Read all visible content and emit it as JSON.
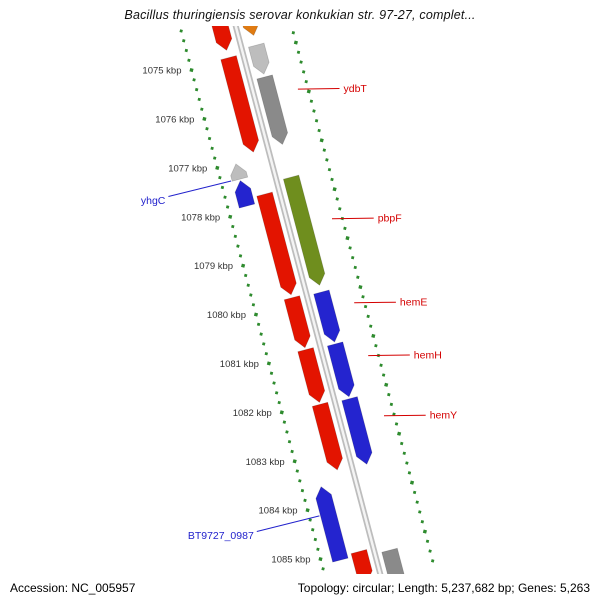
{
  "window": {
    "title": "Bacillus thuringiensis serovar konkukian str. 97-27, complet..."
  },
  "status_bar": {
    "accession": "Accession: NC_005957",
    "summary": "Topology: circular; Length: 5,237,682 bp; Genes: 5,263"
  },
  "chart_data": {
    "type": "genome-feature-map",
    "view": "zoomed linear segment of circular genome, track runs diagonally top-left to bottom-right",
    "axis": {
      "unit": "kbp",
      "visible_range_kbp": [
        1073.9,
        1085.8
      ],
      "minor_tick_interval_kbp": 0.2,
      "major_ticks": [
        {
          "value": 1075,
          "label": "1075 kbp"
        },
        {
          "value": 1076,
          "label": "1076 kbp"
        },
        {
          "value": 1077,
          "label": "1077 kbp"
        },
        {
          "value": 1078,
          "label": "1078 kbp"
        },
        {
          "value": 1079,
          "label": "1079 kbp"
        },
        {
          "value": 1080,
          "label": "1080 kbp"
        },
        {
          "value": 1081,
          "label": "1081 kbp"
        },
        {
          "value": 1082,
          "label": "1082 kbp"
        },
        {
          "value": 1083,
          "label": "1083 kbp"
        },
        {
          "value": 1084,
          "label": "1084 kbp"
        },
        {
          "value": 1085,
          "label": "1085 kbp"
        }
      ]
    },
    "colors": {
      "red": "#e31400",
      "blue": "#2424cf",
      "olive": "#6f8e1e",
      "orange": "#e07b12",
      "gray": "#8a8a8a",
      "gray_light": "#bdbdbd",
      "backbone": "#bdbdbd",
      "backbone_center": "#f4f4f4",
      "tick": "#2e8b2e",
      "label_red": "#d40000",
      "label_blue": "#2222cc"
    },
    "features": [
      {
        "label": null,
        "color_key": "red",
        "lane": "L1",
        "start_kbp": 1074.0,
        "end_kbp": 1074.8,
        "points": "down"
      },
      {
        "label": null,
        "color_key": "orange",
        "lane": "R1",
        "start_kbp": 1074.0,
        "end_kbp": 1074.65,
        "points": "down"
      },
      {
        "label": "ydbT",
        "color_key": "red",
        "lane": "L1",
        "start_kbp": 1074.95,
        "end_kbp": 1076.88,
        "points": "down"
      },
      {
        "label": null,
        "color_key": "gray_light",
        "lane": "R1",
        "start_kbp": 1074.85,
        "end_kbp": 1075.44,
        "points": "down"
      },
      {
        "label": null,
        "color_key": "gray",
        "lane": "R1",
        "start_kbp": 1075.5,
        "end_kbp": 1076.88,
        "points": "down"
      },
      {
        "label": null,
        "color_key": "gray_light",
        "lane": "L2",
        "start_kbp": 1077.02,
        "end_kbp": 1077.33,
        "points": "up"
      },
      {
        "label": "yhgC",
        "color_key": "blue",
        "lane": "L2",
        "start_kbp": 1077.36,
        "end_kbp": 1077.88,
        "points": "up"
      },
      {
        "label": null,
        "color_key": "olive",
        "lane": "R1",
        "start_kbp": 1077.55,
        "end_kbp": 1079.76,
        "points": "down"
      },
      {
        "label": "pbpF",
        "color_key": "red",
        "lane": "L1",
        "start_kbp": 1077.74,
        "end_kbp": 1079.8,
        "points": "down"
      },
      {
        "label": "hemE",
        "color_key": "red",
        "lane": "L1",
        "start_kbp": 1079.86,
        "end_kbp": 1080.88,
        "points": "down"
      },
      {
        "label": null,
        "color_key": "blue",
        "lane": "R1",
        "start_kbp": 1079.9,
        "end_kbp": 1080.92,
        "points": "down"
      },
      {
        "label": "hemH",
        "color_key": "red",
        "lane": "L1",
        "start_kbp": 1080.92,
        "end_kbp": 1082.0,
        "points": "down"
      },
      {
        "label": null,
        "color_key": "blue",
        "lane": "R1",
        "start_kbp": 1080.96,
        "end_kbp": 1082.04,
        "points": "down"
      },
      {
        "label": "hemY",
        "color_key": "red",
        "lane": "L1",
        "start_kbp": 1082.04,
        "end_kbp": 1083.38,
        "points": "down"
      },
      {
        "label": null,
        "color_key": "blue",
        "lane": "R1",
        "start_kbp": 1082.08,
        "end_kbp": 1083.42,
        "points": "down"
      },
      {
        "label": "BT9727_0987",
        "color_key": "blue",
        "lane": "L2",
        "start_kbp": 1083.62,
        "end_kbp": 1085.12,
        "points": "up"
      },
      {
        "label": null,
        "color_key": "red",
        "lane": "L1",
        "start_kbp": 1085.05,
        "end_kbp": 1085.68,
        "points": "down"
      },
      {
        "label": null,
        "color_key": "gray",
        "lane": "R1",
        "start_kbp": 1085.18,
        "end_kbp": 1086.1,
        "points": "down"
      }
    ],
    "labels": [
      {
        "text": "ydbT",
        "color_key": "label_red",
        "side": "right",
        "anchor_kbp": 1075.9
      },
      {
        "text": "yhgC",
        "color_key": "label_blue",
        "side": "left",
        "anchor_kbp": 1077.32
      },
      {
        "text": "pbpF",
        "color_key": "label_red",
        "side": "right",
        "anchor_kbp": 1078.55
      },
      {
        "text": "hemE",
        "color_key": "label_red",
        "side": "right",
        "anchor_kbp": 1080.27
      },
      {
        "text": "hemH",
        "color_key": "label_red",
        "side": "right",
        "anchor_kbp": 1081.35
      },
      {
        "text": "hemY",
        "color_key": "label_red",
        "side": "right",
        "anchor_kbp": 1082.58
      },
      {
        "text": "BT9727_0987",
        "color_key": "label_blue",
        "side": "left",
        "anchor_kbp": 1084.17
      }
    ]
  }
}
